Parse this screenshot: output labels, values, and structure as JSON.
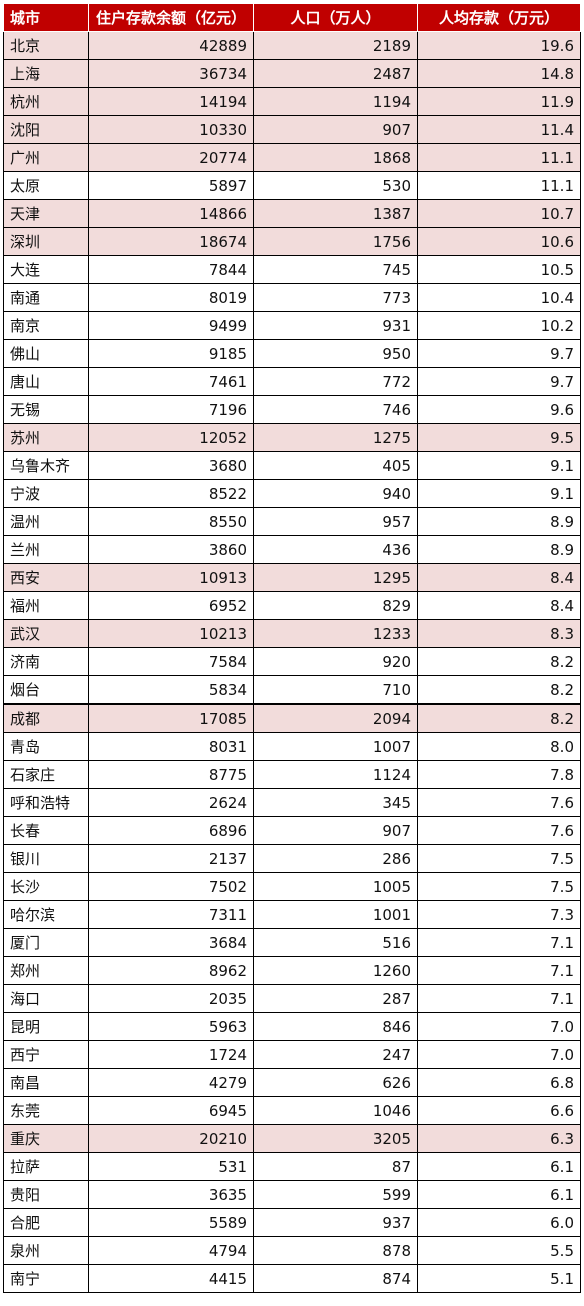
{
  "headers": [
    "城市",
    "住户存款余额（亿元）",
    "人口（万人）",
    "人均存款（万元）"
  ],
  "rows": [
    {
      "city": "北京",
      "deposit": "42889",
      "population": "2189",
      "per_capita": "19.6",
      "highlight": true
    },
    {
      "city": "上海",
      "deposit": "36734",
      "population": "2487",
      "per_capita": "14.8",
      "highlight": true
    },
    {
      "city": "杭州",
      "deposit": "14194",
      "population": "1194",
      "per_capita": "11.9",
      "highlight": true
    },
    {
      "city": "沈阳",
      "deposit": "10330",
      "population": "907",
      "per_capita": "11.4",
      "highlight": true
    },
    {
      "city": "广州",
      "deposit": "20774",
      "population": "1868",
      "per_capita": "11.1",
      "highlight": true
    },
    {
      "city": "太原",
      "deposit": "5897",
      "population": "530",
      "per_capita": "11.1",
      "highlight": false
    },
    {
      "city": "天津",
      "deposit": "14866",
      "population": "1387",
      "per_capita": "10.7",
      "highlight": true
    },
    {
      "city": "深圳",
      "deposit": "18674",
      "population": "1756",
      "per_capita": "10.6",
      "highlight": true
    },
    {
      "city": "大连",
      "deposit": "7844",
      "population": "745",
      "per_capita": "10.5",
      "highlight": false
    },
    {
      "city": "南通",
      "deposit": "8019",
      "population": "773",
      "per_capita": "10.4",
      "highlight": false
    },
    {
      "city": "南京",
      "deposit": "9499",
      "population": "931",
      "per_capita": "10.2",
      "highlight": false
    },
    {
      "city": "佛山",
      "deposit": "9185",
      "population": "950",
      "per_capita": "9.7",
      "highlight": false
    },
    {
      "city": "唐山",
      "deposit": "7461",
      "population": "772",
      "per_capita": "9.7",
      "highlight": false
    },
    {
      "city": "无锡",
      "deposit": "7196",
      "population": "746",
      "per_capita": "9.6",
      "highlight": false
    },
    {
      "city": "苏州",
      "deposit": "12052",
      "population": "1275",
      "per_capita": "9.5",
      "highlight": true
    },
    {
      "city": "乌鲁木齐",
      "deposit": "3680",
      "population": "405",
      "per_capita": "9.1",
      "highlight": false
    },
    {
      "city": "宁波",
      "deposit": "8522",
      "population": "940",
      "per_capita": "9.1",
      "highlight": false
    },
    {
      "city": "温州",
      "deposit": "8550",
      "population": "957",
      "per_capita": "8.9",
      "highlight": false
    },
    {
      "city": "兰州",
      "deposit": "3860",
      "population": "436",
      "per_capita": "8.9",
      "highlight": false
    },
    {
      "city": "西安",
      "deposit": "10913",
      "population": "1295",
      "per_capita": "8.4",
      "highlight": true
    },
    {
      "city": "福州",
      "deposit": "6952",
      "population": "829",
      "per_capita": "8.4",
      "highlight": false
    },
    {
      "city": "武汉",
      "deposit": "10213",
      "population": "1233",
      "per_capita": "8.3",
      "highlight": true
    },
    {
      "city": "济南",
      "deposit": "7584",
      "population": "920",
      "per_capita": "8.2",
      "highlight": false
    },
    {
      "city": "烟台",
      "deposit": "5834",
      "population": "710",
      "per_capita": "8.2",
      "highlight": false
    },
    {
      "city": "成都",
      "deposit": "17085",
      "population": "2094",
      "per_capita": "8.2",
      "highlight": true
    },
    {
      "city": "青岛",
      "deposit": "8031",
      "population": "1007",
      "per_capita": "8.0",
      "highlight": false
    },
    {
      "city": "石家庄",
      "deposit": "8775",
      "population": "1124",
      "per_capita": "7.8",
      "highlight": false
    },
    {
      "city": "呼和浩特",
      "deposit": "2624",
      "population": "345",
      "per_capita": "7.6",
      "highlight": false
    },
    {
      "city": "长春",
      "deposit": "6896",
      "population": "907",
      "per_capita": "7.6",
      "highlight": false
    },
    {
      "city": "银川",
      "deposit": "2137",
      "population": "286",
      "per_capita": "7.5",
      "highlight": false
    },
    {
      "city": "长沙",
      "deposit": "7502",
      "population": "1005",
      "per_capita": "7.5",
      "highlight": false
    },
    {
      "city": "哈尔滨",
      "deposit": "7311",
      "population": "1001",
      "per_capita": "7.3",
      "highlight": false
    },
    {
      "city": "厦门",
      "deposit": "3684",
      "population": "516",
      "per_capita": "7.1",
      "highlight": false
    },
    {
      "city": "郑州",
      "deposit": "8962",
      "population": "1260",
      "per_capita": "7.1",
      "highlight": false
    },
    {
      "city": "海口",
      "deposit": "2035",
      "population": "287",
      "per_capita": "7.1",
      "highlight": false
    },
    {
      "city": "昆明",
      "deposit": "5963",
      "population": "846",
      "per_capita": "7.0",
      "highlight": false
    },
    {
      "city": "西宁",
      "deposit": "1724",
      "population": "247",
      "per_capita": "7.0",
      "highlight": false
    },
    {
      "city": "南昌",
      "deposit": "4279",
      "population": "626",
      "per_capita": "6.8",
      "highlight": false
    },
    {
      "city": "东莞",
      "deposit": "6945",
      "population": "1046",
      "per_capita": "6.6",
      "highlight": false
    },
    {
      "city": "重庆",
      "deposit": "20210",
      "population": "3205",
      "per_capita": "6.3",
      "highlight": true
    },
    {
      "city": "拉萨",
      "deposit": "531",
      "population": "87",
      "per_capita": "6.1",
      "highlight": false
    },
    {
      "city": "贵阳",
      "deposit": "3635",
      "population": "599",
      "per_capita": "6.1",
      "highlight": false
    },
    {
      "city": "合肥",
      "deposit": "5589",
      "population": "937",
      "per_capita": "6.0",
      "highlight": false
    },
    {
      "city": "泉州",
      "deposit": "4794",
      "population": "878",
      "per_capita": "5.5",
      "highlight": false
    },
    {
      "city": "南宁",
      "deposit": "4415",
      "population": "874",
      "per_capita": "5.1",
      "highlight": false
    }
  ],
  "colors": {
    "header_bg": "#c00000",
    "header_text": "#ffffff",
    "highlight_row": "#f2dcdb"
  }
}
